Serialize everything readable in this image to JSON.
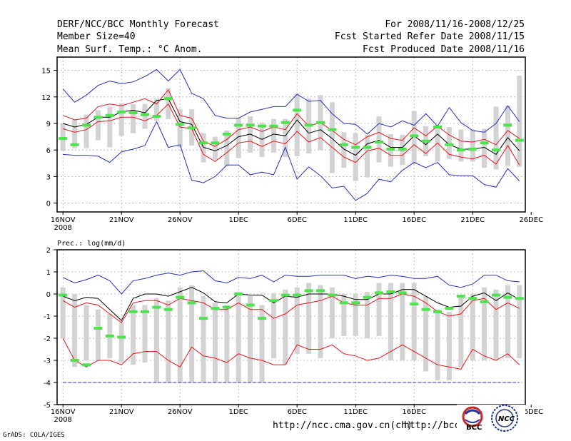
{
  "header": {
    "title": "DERF/NCC/BCC Monthly Forecast",
    "member": "Member Size=40",
    "variable": "Mean Surf. Temp.: °C Anom.",
    "period": "For 2008/11/16-2008/12/25",
    "started": "Fcst Started Refer Date 2008/11/15",
    "produced": "Fcst Produced Date 2008/11/16"
  },
  "footer": {
    "url1": "http://ncc.cma.gov.cn(ch)",
    "url2": "http://bcc.c",
    "grads": "GrADS: COLA/IGES",
    "logo_bcc_text": "BCC",
    "logo_ncc_text": "NCC"
  },
  "colors": {
    "ensemble": "#000000",
    "spread": "#e8141b",
    "extreme": "#2c2cc8",
    "member_bar": "#d3d3d3",
    "mean_marker": "#4ce34c"
  },
  "chart_data": [
    {
      "type": "line",
      "title": "",
      "ylabel": "Mean Surf. Temp.: °C Anom.",
      "ylim": [
        -1,
        16.5
      ],
      "yticks": [
        0,
        3,
        6,
        9,
        12,
        15
      ],
      "xlim": [
        -0.5,
        39.5
      ],
      "xticks": [
        {
          "i": 0,
          "label": "16NOV"
        },
        {
          "i": 5,
          "label": "21NOV"
        },
        {
          "i": 10,
          "label": "26NOV"
        },
        {
          "i": 15,
          "label": "1DEC"
        },
        {
          "i": 20,
          "label": "6DEC"
        },
        {
          "i": 25,
          "label": "11DEC"
        },
        {
          "i": 30,
          "label": "16DEC"
        },
        {
          "i": 35,
          "label": "21DEC"
        },
        {
          "i": 40,
          "label": "26DEC"
        }
      ],
      "year_label": "2008",
      "series": [
        {
          "name": "max",
          "color_key": "extreme",
          "values": [
            12.9,
            11.4,
            12.2,
            13.3,
            13.8,
            13.5,
            13.7,
            14.3,
            15.1,
            13.8,
            15.1,
            12.4,
            11.8,
            9.9,
            9.6,
            9.6,
            10.3,
            10.6,
            10.9,
            10.9,
            12.3,
            11.5,
            11.6,
            10.1,
            9.0,
            8.9,
            7.8,
            9.0,
            8.6,
            9.3,
            8.8,
            10.1,
            8.7,
            10.8,
            9.1,
            8.2,
            8.0,
            9.0,
            11.0,
            9.2
          ]
        },
        {
          "name": "upper",
          "color_key": "spread",
          "values": [
            9.9,
            9.4,
            9.6,
            10.9,
            11.2,
            11.0,
            11.4,
            11.8,
            11.2,
            12.8,
            9.9,
            9.6,
            7.0,
            6.4,
            7.2,
            8.3,
            8.6,
            8.1,
            8.6,
            8.3,
            10.1,
            8.7,
            9.1,
            8.2,
            7.2,
            6.6,
            7.5,
            8.0,
            7.3,
            7.1,
            8.5,
            7.6,
            8.7,
            7.7,
            7.0,
            6.9,
            7.2,
            6.6,
            8.2,
            7.3
          ]
        },
        {
          "name": "mean",
          "color_key": "ensemble",
          "values": [
            9.0,
            8.6,
            8.9,
            9.7,
            9.7,
            10.3,
            10.5,
            10.2,
            11.6,
            11.8,
            9.2,
            8.9,
            6.3,
            5.9,
            6.5,
            7.5,
            7.8,
            7.2,
            7.8,
            7.6,
            9.4,
            7.9,
            8.3,
            7.3,
            6.1,
            5.4,
            6.7,
            7.1,
            6.3,
            6.3,
            7.6,
            6.6,
            7.8,
            6.6,
            6.1,
            6.1,
            6.3,
            5.5,
            7.4,
            5.9
          ]
        },
        {
          "name": "lower",
          "color_key": "spread",
          "values": [
            8.4,
            8.0,
            8.3,
            9.2,
            9.3,
            9.7,
            9.7,
            9.3,
            9.9,
            11.2,
            8.6,
            8.4,
            5.5,
            4.7,
            5.7,
            6.8,
            7.0,
            6.4,
            7.0,
            6.7,
            8.1,
            6.9,
            7.4,
            6.3,
            5.2,
            4.6,
            5.9,
            6.2,
            5.4,
            5.4,
            6.6,
            5.6,
            6.8,
            5.5,
            5.2,
            5.0,
            5.4,
            4.4,
            6.5,
            4.3
          ]
        },
        {
          "name": "min",
          "color_key": "extreme",
          "values": [
            5.5,
            5.4,
            5.4,
            5.3,
            4.6,
            5.8,
            6.1,
            6.5,
            9.2,
            6.3,
            6.6,
            2.6,
            2.3,
            3.0,
            4.3,
            4.3,
            3.2,
            3.5,
            3.2,
            6.3,
            2.7,
            4.1,
            3.1,
            1.7,
            1.9,
            0.3,
            1.1,
            2.7,
            2.4,
            3.7,
            4.6,
            4.0,
            4.6,
            3.2,
            3.1,
            3.1,
            2.1,
            1.8,
            3.9,
            2.5
          ]
        },
        {
          "name": "obs_marker",
          "color_key": "mean_marker",
          "values": [
            7.3,
            6.6,
            8.8,
            9.7,
            9.9,
            10.3,
            10.2,
            10.0,
            9.8,
            11.8,
            8.9,
            8.5,
            6.8,
            6.8,
            7.8,
            8.8,
            8.8,
            8.7,
            8.7,
            9.1,
            10.5,
            8.8,
            9.1,
            8.3,
            6.6,
            6.3,
            6.3,
            6.9,
            6.1,
            6.1,
            7.6,
            7.0,
            8.6,
            6.6,
            6.0,
            6.1,
            6.8,
            6.0,
            8.8,
            7.1
          ]
        }
      ],
      "bars": {
        "top": [
          9.0,
          9.4,
          10.0,
          10.5,
          10.9,
          11.3,
          11.2,
          11.2,
          11.8,
          13.0,
          10.6,
          10.6,
          7.9,
          7.5,
          8.2,
          9.6,
          9.8,
          9.1,
          9.5,
          9.5,
          12.4,
          11.8,
          12.2,
          11.4,
          8.0,
          7.9,
          7.7,
          9.8,
          7.8,
          7.7,
          10.4,
          8.7,
          8.8,
          8.6,
          8.3,
          8.3,
          8.4,
          10.9,
          11.0,
          14.4
        ],
        "bottom": [
          5.9,
          6.2,
          6.2,
          7.1,
          6.3,
          7.6,
          7.9,
          8.4,
          9.3,
          9.5,
          6.3,
          6.5,
          4.6,
          4.9,
          4.2,
          5.1,
          5.7,
          5.2,
          5.7,
          5.2,
          5.3,
          5.6,
          6.0,
          3.4,
          4.0,
          2.5,
          2.9,
          4.6,
          4.1,
          4.3,
          4.4,
          5.3,
          4.7,
          5.0,
          4.7,
          4.7,
          4.0,
          3.8,
          4.2,
          4.1
        ]
      }
    },
    {
      "type": "line",
      "title": "",
      "ylabel": "Prec.: log(mm/d)",
      "ylim": [
        -5,
        2
      ],
      "yticks": [
        -5,
        -4,
        -3,
        -2,
        -1,
        0,
        1,
        2
      ],
      "xlim": [
        -0.5,
        39.5
      ],
      "xticks": [
        {
          "i": 0,
          "label": "16NOV"
        },
        {
          "i": 5,
          "label": "21NOV"
        },
        {
          "i": 10,
          "label": "26NOV"
        },
        {
          "i": 15,
          "label": "1DEC"
        },
        {
          "i": 20,
          "label": "6DEC"
        },
        {
          "i": 25,
          "label": "11DEC"
        },
        {
          "i": 30,
          "label": "16DEC"
        },
        {
          "i": 35,
          "label": "21DEC"
        },
        {
          "i": 40,
          "label": "26DEC"
        }
      ],
      "year_label": "2008",
      "baseline": -4,
      "series": [
        {
          "name": "max",
          "color_key": "extreme",
          "values": [
            0.75,
            0.5,
            0.65,
            0.85,
            0.6,
            0.0,
            0.6,
            0.7,
            0.85,
            0.95,
            0.85,
            1.0,
            1.05,
            0.6,
            0.5,
            0.75,
            0.7,
            0.85,
            0.55,
            0.85,
            0.8,
            0.8,
            0.85,
            0.85,
            0.85,
            0.7,
            0.8,
            0.75,
            0.85,
            0.8,
            0.7,
            0.7,
            0.8,
            0.4,
            0.3,
            0.45,
            0.85,
            0.85,
            0.6,
            0.55
          ]
        },
        {
          "name": "mean",
          "color_key": "ensemble",
          "values": [
            -0.1,
            -0.3,
            -0.15,
            -0.2,
            -0.7,
            -1.2,
            -0.2,
            0.0,
            0.0,
            -0.1,
            0.1,
            0.3,
            0.05,
            -0.35,
            -0.4,
            0.0,
            -0.05,
            -0.05,
            -0.4,
            -0.1,
            -0.15,
            0.0,
            0.0,
            0.0,
            -0.1,
            -0.25,
            -0.25,
            0.0,
            0.0,
            0.2,
            0.2,
            -0.1,
            -0.4,
            -0.6,
            -0.55,
            -0.1,
            0.05,
            -0.3,
            0.05,
            -0.25
          ]
        },
        {
          "name": "upper_red",
          "color_key": "spread",
          "values": [
            -0.3,
            -0.6,
            -0.4,
            -0.5,
            -0.9,
            -1.3,
            -0.4,
            -0.3,
            -0.3,
            -0.5,
            -0.2,
            -0.3,
            -0.4,
            -0.7,
            -0.7,
            -0.4,
            -0.7,
            -0.7,
            -1.1,
            -0.9,
            -0.5,
            -0.4,
            -0.3,
            -0.1,
            -0.4,
            -0.5,
            -0.5,
            -0.2,
            -0.2,
            0.0,
            -0.1,
            -0.4,
            -0.8,
            -1.0,
            -0.9,
            -0.3,
            -0.2,
            -0.7,
            -0.4,
            -0.65
          ]
        },
        {
          "name": "lower_red",
          "color_key": "spread",
          "values": [
            -2.0,
            -3.0,
            -3.3,
            -3.0,
            -3.0,
            -3.2,
            -2.7,
            -2.6,
            -2.6,
            -3.0,
            -3.3,
            -2.4,
            -2.8,
            -2.9,
            -3.1,
            -2.7,
            -2.9,
            -3.0,
            -3.2,
            -3.2,
            -2.3,
            -2.5,
            -2.5,
            -2.3,
            -2.7,
            -2.8,
            -3.0,
            -2.9,
            -2.6,
            -2.3,
            -2.6,
            -2.9,
            -3.2,
            -3.3,
            -3.4,
            -2.5,
            -2.8,
            -3.0,
            -2.7,
            -3.2
          ]
        },
        {
          "name": "obs_marker",
          "color_key": "mean_marker",
          "values": [
            -0.05,
            -3.0,
            -3.2,
            -1.55,
            -1.9,
            -1.95,
            -0.8,
            -0.8,
            -0.6,
            -0.7,
            -0.15,
            -0.4,
            -1.1,
            -0.65,
            -0.6,
            0.0,
            -0.5,
            -1.1,
            -0.3,
            -0.05,
            -0.05,
            0.15,
            0.15,
            -0.05,
            -0.4,
            -0.4,
            -0.15,
            0.05,
            0.1,
            0.05,
            -0.45,
            -0.7,
            -0.8,
            -0.65,
            -0.1,
            -0.2,
            -0.35,
            -0.05,
            -0.15,
            -0.2
          ]
        }
      ],
      "bars": {
        "top": [
          0.3,
          0.0,
          -0.5,
          -0.7,
          -0.9,
          -1.3,
          -0.5,
          -0.5,
          -0.2,
          -0.3,
          0.3,
          0.4,
          -0.1,
          -0.4,
          -0.5,
          0.1,
          -0.1,
          -0.5,
          0.05,
          0.2,
          0.3,
          0.5,
          0.4,
          0.3,
          0.0,
          0.0,
          0.1,
          0.5,
          0.5,
          0.5,
          0.5,
          -0.1,
          -0.7,
          -0.8,
          -0.1,
          0.0,
          0.3,
          0.2,
          0.4,
          0.4
        ],
        "bottom": [
          -2.0,
          -3.3,
          -3.0,
          -3.0,
          -2.9,
          -3.1,
          -3.2,
          -3.1,
          -4.0,
          -4.0,
          -4.0,
          -4.0,
          -4.0,
          -4.0,
          -4.0,
          -4.0,
          -4.0,
          -4.0,
          -2.9,
          -3.2,
          -2.7,
          -2.7,
          -2.9,
          -2.0,
          -1.9,
          -1.9,
          -2.0,
          -1.9,
          -3.0,
          -3.0,
          -3.0,
          -3.5,
          -3.9,
          -3.9,
          -3.3,
          -3.0,
          -3.0,
          -3.0,
          -2.9,
          -2.9
        ]
      }
    }
  ]
}
